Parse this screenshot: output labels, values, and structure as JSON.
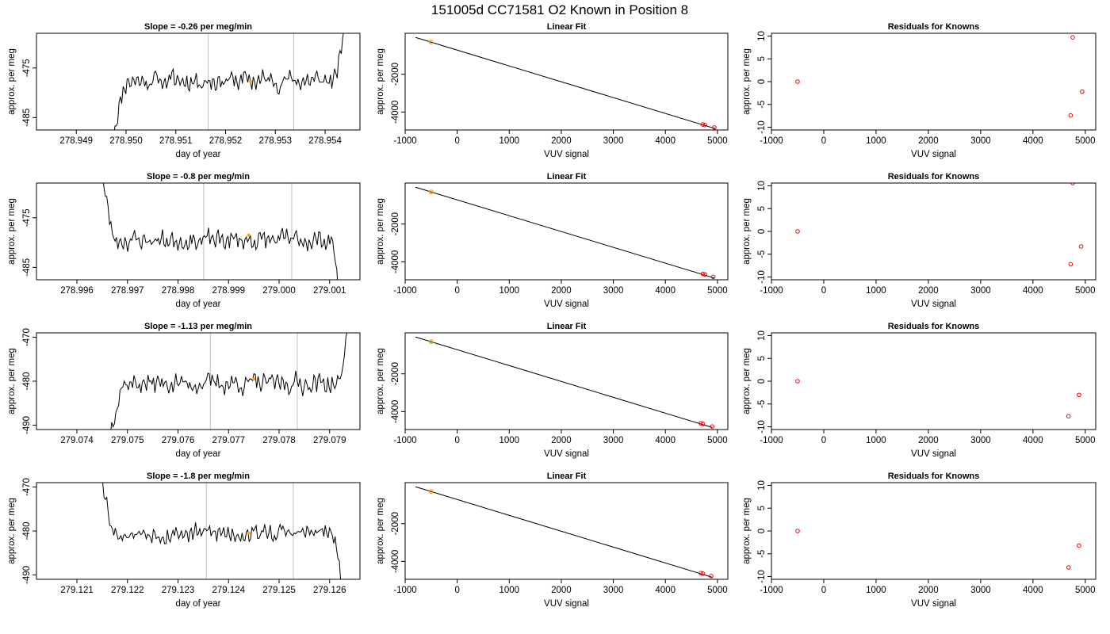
{
  "title": "151005d     CC71581    O2 Known in Position  8",
  "colors": {
    "trace": "#000000",
    "marker_orange": "#FFA500",
    "marker_red": "#FF0000",
    "vline": "#BEBEBE",
    "box": "#000000"
  },
  "chart_data": [
    {
      "type": "line",
      "row": 0,
      "col": 0,
      "title": "Slope =  -0.26  per meg/min",
      "xlabel": "day of year",
      "ylabel": "approx. per meg",
      "xlim": [
        278.9482,
        278.9547
      ],
      "ylim": [
        -487.5,
        -468
      ],
      "xticks": [
        278.949,
        278.95,
        278.951,
        278.952,
        278.953,
        278.954
      ],
      "xtick_labels": [
        "278.949",
        "278.950",
        "278.951",
        "278.952",
        "278.953",
        "278.954"
      ],
      "yticks": [
        -475,
        -485
      ],
      "ytick_labels": [
        "-475",
        "-485"
      ],
      "vlines": [
        278.95165,
        278.95337
      ],
      "marker": {
        "x": 278.9525,
        "y": -477.7
      },
      "series": {
        "start": 278.94975,
        "end": 278.95438,
        "flat_start": 278.95003,
        "flat_end": 278.9542,
        "level": -477.5,
        "amp": 2.6,
        "start_level": -488,
        "end_level": -467,
        "seed": 11
      }
    },
    {
      "type": "line",
      "row": 0,
      "col": 1,
      "title": "Linear Fit",
      "xlabel": "VUV signal",
      "ylabel": "approx. per meg",
      "xlim": [
        -1000,
        5200
      ],
      "ylim": [
        -4950,
        170
      ],
      "xticks": [
        -1000,
        0,
        1000,
        2000,
        3000,
        4000,
        5000
      ],
      "xtick_labels": [
        "-1000",
        "0",
        "1000",
        "2000",
        "3000",
        "4000",
        "5000"
      ],
      "yticks": [
        -2000,
        -4000
      ],
      "ytick_labels": [
        "-2000",
        "-4000"
      ],
      "line": {
        "x": [
          -800,
          4960
        ],
        "y": [
          -50,
          -4880
        ]
      },
      "points_orange": [
        {
          "x": -500,
          "y": -300
        }
      ],
      "points_red": [
        {
          "x": -500,
          "y": -300
        },
        {
          "x": 4720,
          "y": -4660
        },
        {
          "x": 4760,
          "y": -4690
        },
        {
          "x": 4940,
          "y": -4820
        }
      ]
    },
    {
      "type": "scatter",
      "row": 0,
      "col": 2,
      "title": "Residuals for Knowns",
      "xlabel": "VUV signal",
      "ylabel": "approx. per meg",
      "xlim": [
        -1000,
        5200
      ],
      "ylim": [
        -10.6,
        10.6
      ],
      "xticks": [
        -1000,
        0,
        1000,
        2000,
        3000,
        4000,
        5000
      ],
      "xtick_labels": [
        "-1000",
        "0",
        "1000",
        "2000",
        "3000",
        "4000",
        "5000"
      ],
      "yticks": [
        10,
        5,
        0,
        -5,
        -10
      ],
      "ytick_labels": [
        "10",
        "5",
        "0",
        "-5",
        "-10"
      ],
      "points_red": [
        {
          "x": -500,
          "y": 0
        },
        {
          "x": 4760,
          "y": 9.7
        },
        {
          "x": 4940,
          "y": -2.2
        },
        {
          "x": 4720,
          "y": -7.4
        }
      ]
    },
    {
      "type": "line",
      "row": 1,
      "col": 0,
      "title": "Slope =  -0.8  per meg/min",
      "xlabel": "day of year",
      "ylabel": "approx. per meg",
      "xlim": [
        278.9952,
        279.0016
      ],
      "ylim": [
        -487.5,
        -468
      ],
      "xticks": [
        278.996,
        278.997,
        278.998,
        278.999,
        279.0,
        279.001
      ],
      "xtick_labels": [
        "278.996",
        "278.997",
        "278.998",
        "278.999",
        "279.000",
        "279.001"
      ],
      "yticks": [
        -475,
        -485
      ],
      "ytick_labels": [
        "-475",
        "-485"
      ],
      "vlines": [
        278.99851,
        279.00025
      ],
      "marker": {
        "x": 278.9994,
        "y": -478.5
      },
      "series": {
        "start": 278.99648,
        "end": 279.00117,
        "flat_start": 278.99675,
        "flat_end": 279.00105,
        "level": -479.5,
        "amp": 2.4,
        "start_level": -464,
        "end_level": -490,
        "seed": 23
      }
    },
    {
      "type": "line",
      "row": 1,
      "col": 1,
      "title": "Linear Fit",
      "xlabel": "VUV signal",
      "ylabel": "approx. per meg",
      "xlim": [
        -1000,
        5200
      ],
      "ylim": [
        -4950,
        170
      ],
      "xticks": [
        -1000,
        0,
        1000,
        2000,
        3000,
        4000,
        5000
      ],
      "xtick_labels": [
        "-1000",
        "0",
        "1000",
        "2000",
        "3000",
        "4000",
        "5000"
      ],
      "yticks": [
        -2000,
        -4000
      ],
      "ytick_labels": [
        "-2000",
        "-4000"
      ],
      "line": {
        "x": [
          -800,
          4940
        ],
        "y": [
          -50,
          -4860
        ]
      },
      "points_orange": [
        {
          "x": -500,
          "y": -300
        }
      ],
      "points_red": [
        {
          "x": -500,
          "y": -300
        },
        {
          "x": 4720,
          "y": -4640
        },
        {
          "x": 4760,
          "y": -4670
        },
        {
          "x": 4920,
          "y": -4800
        }
      ]
    },
    {
      "type": "scatter",
      "row": 1,
      "col": 2,
      "title": "Residuals for Knowns",
      "xlabel": "VUV signal",
      "ylabel": "approx. per meg",
      "xlim": [
        -1000,
        5200
      ],
      "ylim": [
        -10.6,
        10.6
      ],
      "xticks": [
        -1000,
        0,
        1000,
        2000,
        3000,
        4000,
        5000
      ],
      "xtick_labels": [
        "-1000",
        "0",
        "1000",
        "2000",
        "3000",
        "4000",
        "5000"
      ],
      "yticks": [
        10,
        5,
        0,
        -5,
        -10
      ],
      "ytick_labels": [
        "10",
        "5",
        "0",
        "-5",
        "-10"
      ],
      "points_red": [
        {
          "x": -500,
          "y": 0
        },
        {
          "x": 4760,
          "y": 10.6
        },
        {
          "x": 4920,
          "y": -3.3
        },
        {
          "x": 4720,
          "y": -7.2
        }
      ]
    },
    {
      "type": "line",
      "row": 2,
      "col": 0,
      "title": "Slope =  -1.13  per meg/min",
      "xlabel": "day of year",
      "ylabel": "approx. per meg",
      "xlim": [
        279.0732,
        279.0796
      ],
      "ylim": [
        -491,
        -469
      ],
      "xticks": [
        279.074,
        279.075,
        279.076,
        279.077,
        279.078,
        279.079
      ],
      "xtick_labels": [
        "279.074",
        "279.075",
        "279.076",
        "279.077",
        "279.078",
        "279.079"
      ],
      "yticks": [
        -470,
        -480,
        -490
      ],
      "ytick_labels": [
        "-470",
        "-480",
        "-490"
      ],
      "vlines": [
        279.07664,
        279.07836
      ],
      "marker": {
        "x": 279.0775,
        "y": -479.5
      },
      "series": {
        "start": 279.07466,
        "end": 279.07935,
        "flat_start": 279.07492,
        "flat_end": 279.0792,
        "level": -480.5,
        "amp": 2.8,
        "start_level": -492,
        "end_level": -468,
        "seed": 37
      }
    },
    {
      "type": "line",
      "row": 2,
      "col": 1,
      "title": "Linear Fit",
      "xlabel": "VUV signal",
      "ylabel": "approx. per meg",
      "xlim": [
        -1000,
        5200
      ],
      "ylim": [
        -4950,
        170
      ],
      "xticks": [
        -1000,
        0,
        1000,
        2000,
        3000,
        4000,
        5000
      ],
      "xtick_labels": [
        "-1000",
        "0",
        "1000",
        "2000",
        "3000",
        "4000",
        "5000"
      ],
      "yticks": [
        -2000,
        -4000
      ],
      "ytick_labels": [
        "-2000",
        "-4000"
      ],
      "line": {
        "x": [
          -800,
          4900
        ],
        "y": [
          -50,
          -4840
        ]
      },
      "points_orange": [
        {
          "x": -500,
          "y": -300
        }
      ],
      "points_red": [
        {
          "x": -500,
          "y": -300
        },
        {
          "x": 4680,
          "y": -4620
        },
        {
          "x": 4720,
          "y": -4650
        },
        {
          "x": 4900,
          "y": -4790
        }
      ]
    },
    {
      "type": "scatter",
      "row": 2,
      "col": 2,
      "title": "Residuals for Knowns",
      "xlabel": "VUV signal",
      "ylabel": "approx. per meg",
      "xlim": [
        -1000,
        5200
      ],
      "ylim": [
        -10.6,
        10.6
      ],
      "xticks": [
        -1000,
        0,
        1000,
        2000,
        3000,
        4000,
        5000
      ],
      "xtick_labels": [
        "-1000",
        "0",
        "1000",
        "2000",
        "3000",
        "4000",
        "5000"
      ],
      "yticks": [
        10,
        5,
        0,
        -5,
        -10
      ],
      "ytick_labels": [
        "10",
        "5",
        "0",
        "-5",
        "-10"
      ],
      "points_red": [
        {
          "x": -500,
          "y": 0
        },
        {
          "x": 4880,
          "y": -3.0
        },
        {
          "x": 4680,
          "y": -7.7
        }
      ]
    },
    {
      "type": "line",
      "row": 3,
      "col": 0,
      "title": "Slope =  -1.8  per meg/min",
      "xlabel": "day of year",
      "ylabel": "approx. per meg",
      "xlim": [
        279.1202,
        279.1266
      ],
      "ylim": [
        -491,
        -469
      ],
      "xticks": [
        279.121,
        279.122,
        279.123,
        279.124,
        279.125,
        279.126
      ],
      "xtick_labels": [
        "279.121",
        "279.122",
        "279.123",
        "279.124",
        "279.125",
        "279.126"
      ],
      "yticks": [
        -470,
        -480,
        -490
      ],
      "ytick_labels": [
        "-470",
        "-480",
        "-490"
      ],
      "vlines": [
        279.12356,
        279.12528
      ],
      "marker": {
        "x": 279.1244,
        "y": -480.5
      },
      "series": {
        "start": 279.12148,
        "end": 279.12622,
        "flat_start": 279.12175,
        "flat_end": 279.12605,
        "level": -480.5,
        "amp": 2.6,
        "start_level": -466,
        "end_level": -492,
        "seed": 53
      }
    },
    {
      "type": "line",
      "row": 3,
      "col": 1,
      "title": "Linear Fit",
      "xlabel": "VUV signal",
      "ylabel": "approx. per meg",
      "xlim": [
        -1000,
        5200
      ],
      "ylim": [
        -4950,
        170
      ],
      "xticks": [
        -1000,
        0,
        1000,
        2000,
        3000,
        4000,
        5000
      ],
      "xtick_labels": [
        "-1000",
        "0",
        "1000",
        "2000",
        "3000",
        "4000",
        "5000"
      ],
      "yticks": [
        -2000,
        -4000
      ],
      "ytick_labels": [
        "-2000",
        "-4000"
      ],
      "line": {
        "x": [
          -800,
          4900
        ],
        "y": [
          -50,
          -4840
        ]
      },
      "points_orange": [
        {
          "x": -500,
          "y": -300
        }
      ],
      "points_red": [
        {
          "x": -500,
          "y": -300
        },
        {
          "x": 4680,
          "y": -4620
        },
        {
          "x": 4720,
          "y": -4650
        },
        {
          "x": 4880,
          "y": -4780
        }
      ]
    },
    {
      "type": "scatter",
      "row": 3,
      "col": 2,
      "title": "Residuals for Knowns",
      "xlabel": "VUV signal",
      "ylabel": "approx. per meg",
      "xlim": [
        -1000,
        5200
      ],
      "ylim": [
        -10.6,
        10.6
      ],
      "xticks": [
        -1000,
        0,
        1000,
        2000,
        3000,
        4000,
        5000
      ],
      "xtick_labels": [
        "-1000",
        "0",
        "1000",
        "2000",
        "3000",
        "4000",
        "5000"
      ],
      "yticks": [
        10,
        5,
        0,
        -5,
        -10
      ],
      "ytick_labels": [
        "10",
        "5",
        "0",
        "-5",
        "-10"
      ],
      "points_red": [
        {
          "x": -500,
          "y": 0
        },
        {
          "x": 4880,
          "y": -3.2
        },
        {
          "x": 4680,
          "y": -8.0
        }
      ]
    }
  ]
}
